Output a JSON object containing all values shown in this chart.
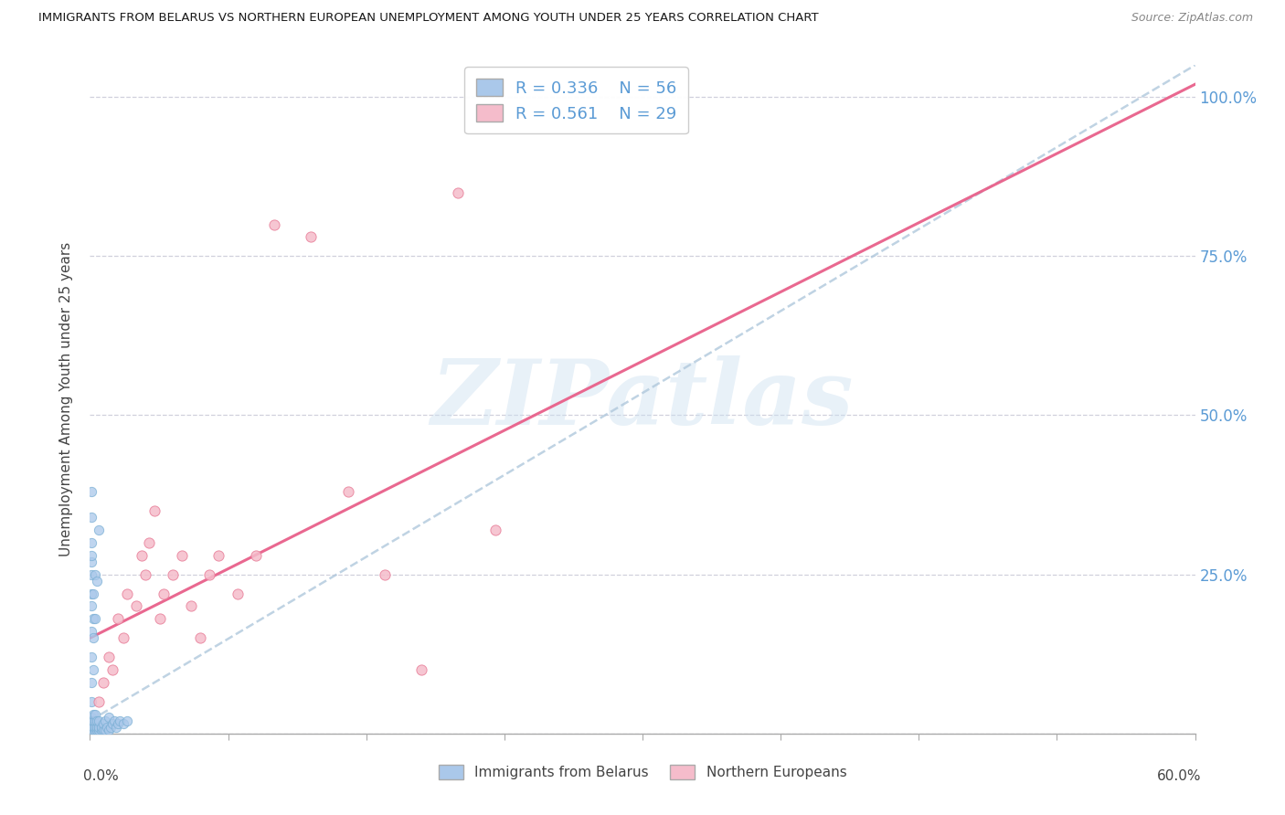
{
  "title": "IMMIGRANTS FROM BELARUS VS NORTHERN EUROPEAN UNEMPLOYMENT AMONG YOUTH UNDER 25 YEARS CORRELATION CHART",
  "source": "Source: ZipAtlas.com",
  "ylabel": "Unemployment Among Youth under 25 years",
  "xlim": [
    0.0,
    0.6
  ],
  "ylim": [
    0.0,
    1.05
  ],
  "yticks": [
    0.0,
    0.25,
    0.5,
    0.75,
    1.0
  ],
  "ytick_labels": [
    "",
    "25.0%",
    "50.0%",
    "75.0%",
    "100.0%"
  ],
  "xticks": [
    0.0,
    0.075,
    0.15,
    0.225,
    0.3,
    0.375,
    0.45,
    0.525,
    0.6
  ],
  "watermark": "ZIPatlas",
  "color_blue": "#aac8ea",
  "color_blue_edge": "#7aafd4",
  "color_pink": "#f5bccb",
  "color_pink_edge": "#e8809a",
  "color_trend_blue": "#b0c8dc",
  "color_trend_pink": "#e8608a",
  "legend1_label": "Immigrants from Belarus",
  "legend2_label": "Northern Europeans",
  "blue_x": [
    0.0005,
    0.001,
    0.001,
    0.001,
    0.001,
    0.002,
    0.002,
    0.002,
    0.002,
    0.003,
    0.003,
    0.003,
    0.003,
    0.004,
    0.004,
    0.004,
    0.005,
    0.005,
    0.005,
    0.006,
    0.006,
    0.007,
    0.007,
    0.008,
    0.008,
    0.009,
    0.01,
    0.01,
    0.011,
    0.012,
    0.013,
    0.014,
    0.015,
    0.016,
    0.018,
    0.02,
    0.001,
    0.001,
    0.001,
    0.001,
    0.001,
    0.001,
    0.001,
    0.001,
    0.001,
    0.001,
    0.001,
    0.001,
    0.002,
    0.002,
    0.002,
    0.002,
    0.003,
    0.003,
    0.004,
    0.005
  ],
  "blue_y": [
    0.005,
    0.01,
    0.015,
    0.02,
    0.025,
    0.005,
    0.01,
    0.02,
    0.03,
    0.005,
    0.01,
    0.02,
    0.03,
    0.005,
    0.01,
    0.02,
    0.005,
    0.01,
    0.02,
    0.005,
    0.01,
    0.005,
    0.015,
    0.005,
    0.02,
    0.01,
    0.005,
    0.025,
    0.01,
    0.015,
    0.02,
    0.01,
    0.015,
    0.02,
    0.015,
    0.02,
    0.05,
    0.08,
    0.12,
    0.16,
    0.22,
    0.27,
    0.3,
    0.34,
    0.38,
    0.28,
    0.25,
    0.2,
    0.1,
    0.15,
    0.18,
    0.22,
    0.18,
    0.25,
    0.24,
    0.32
  ],
  "pink_x": [
    0.005,
    0.007,
    0.01,
    0.012,
    0.015,
    0.018,
    0.02,
    0.025,
    0.028,
    0.03,
    0.032,
    0.035,
    0.038,
    0.04,
    0.045,
    0.05,
    0.055,
    0.06,
    0.065,
    0.07,
    0.08,
    0.09,
    0.1,
    0.12,
    0.14,
    0.16,
    0.18,
    0.2,
    0.22
  ],
  "pink_y": [
    0.05,
    0.08,
    0.12,
    0.1,
    0.18,
    0.15,
    0.22,
    0.2,
    0.28,
    0.25,
    0.3,
    0.35,
    0.18,
    0.22,
    0.25,
    0.28,
    0.2,
    0.15,
    0.25,
    0.28,
    0.22,
    0.28,
    0.8,
    0.78,
    0.38,
    0.25,
    0.1,
    0.85,
    0.32
  ],
  "blue_trend_x0": 0.0,
  "blue_trend_x1": 0.6,
  "blue_trend_y0": 0.02,
  "blue_trend_y1": 1.05,
  "pink_trend_x0": 0.0,
  "pink_trend_x1": 0.6,
  "pink_trend_y0": 0.15,
  "pink_trend_y1": 1.02,
  "marker_size_blue": 55,
  "marker_size_pink": 65
}
